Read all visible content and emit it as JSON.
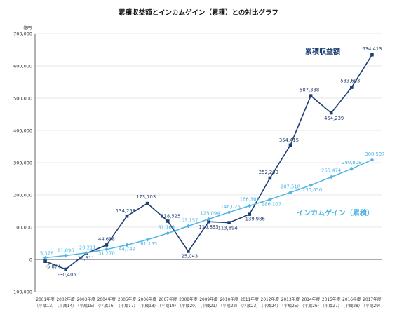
{
  "chart_data": {
    "type": "line",
    "title": "累積収益額とインカムゲイン（累積）との対比グラフ",
    "yunit": "億円",
    "ylim": [
      -100000,
      700000
    ],
    "yticks": [
      -100000,
      0,
      100000,
      200000,
      300000,
      400000,
      500000,
      600000,
      700000
    ],
    "ytick_labels": [
      "-100,000",
      "0",
      "100,000",
      "200,000",
      "300,000",
      "400,000",
      "500,000",
      "600,000",
      "700,000"
    ],
    "categories": [
      {
        "year": "2001年度",
        "era": "（平成13）"
      },
      {
        "year": "2002年度",
        "era": "（平成14）"
      },
      {
        "year": "2003年度",
        "era": "（平成15）"
      },
      {
        "year": "2004年度",
        "era": "（平成16）"
      },
      {
        "year": "2005年度",
        "era": "（平成17）"
      },
      {
        "year": "2006年度",
        "era": "（平成18）"
      },
      {
        "year": "2007年度",
        "era": "（平成19）"
      },
      {
        "year": "2008年度",
        "era": "（平成20）"
      },
      {
        "year": "2009年度",
        "era": "（平成21）"
      },
      {
        "year": "2010年度",
        "era": "（平成22）"
      },
      {
        "year": "2011年度",
        "era": "（平成23）"
      },
      {
        "year": "2012年度",
        "era": "（平成24）"
      },
      {
        "year": "2013年度",
        "era": "（平成25）"
      },
      {
        "year": "2014年度",
        "era": "（平成26）"
      },
      {
        "year": "2015年度",
        "era": "（平成27）"
      },
      {
        "year": "2016年度",
        "era": "（平成28）"
      },
      {
        "year": "2017年度",
        "era": "（平成29）"
      }
    ],
    "grid": true,
    "series": [
      {
        "name": "累積収益額",
        "color": "#1f3f73",
        "marker": "square",
        "values": [
          -5874,
          -30405,
          18511,
          44638,
          134258,
          173703,
          118525,
          25043,
          116893,
          113894,
          139986,
          252209,
          354415,
          507338,
          454239,
          533603,
          634413
        ],
        "labels": [
          "-5,874",
          "-30,405",
          "18,511",
          "44,638",
          "134,258",
          "173,703",
          "118,525",
          "25,043",
          "116,893",
          "113,894",
          "139,986",
          "252,209",
          "354,415",
          "507,338",
          "454,239",
          "533,603",
          "634,413"
        ]
      },
      {
        "name": "インカムゲイン（累積）",
        "color": "#4fb5e6",
        "marker": "diamond",
        "values": [
          5378,
          11896,
          20211,
          31270,
          44749,
          61155,
          81164,
          103157,
          125094,
          146026,
          166367,
          186107,
          207518,
          230050,
          255474,
          280808,
          308597
        ],
        "labels": [
          "5,378",
          "11,896",
          "20,211",
          "31,270",
          "44,749",
          "61,155",
          "81,164",
          "103,157",
          "125,094",
          "146,026",
          "166,367",
          "186,107",
          "207,518",
          "230,050",
          "255,474",
          "280,808",
          "308,597"
        ]
      }
    ]
  }
}
